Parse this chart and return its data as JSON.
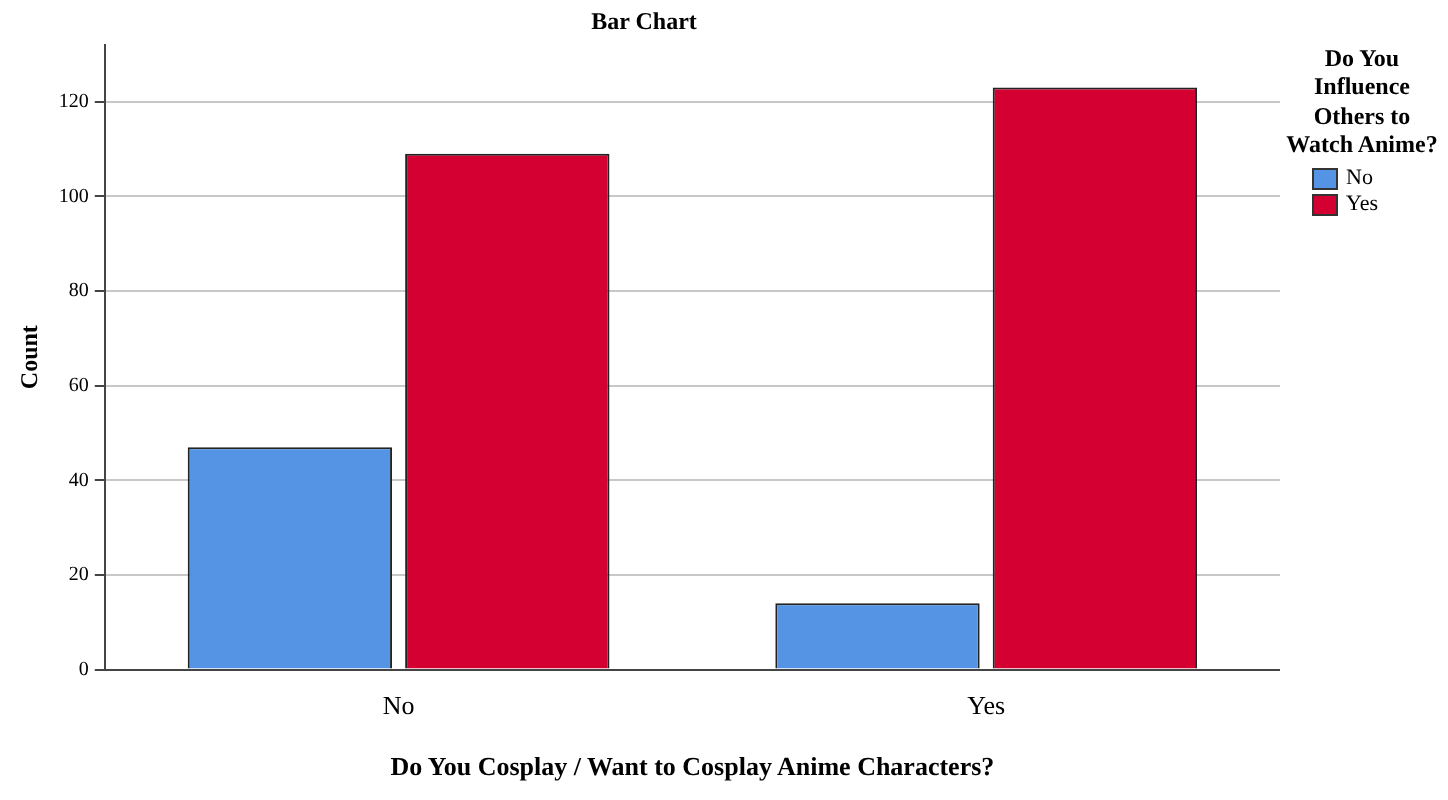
{
  "chart_data": {
    "type": "bar",
    "title": "Bar Chart",
    "xlabel": "Do You Cosplay / Want to Cosplay Anime Characters?",
    "ylabel": "Count",
    "legend_title": "Do You Influence Others to Watch Anime?",
    "categories": [
      "No",
      "Yes"
    ],
    "series": [
      {
        "name": "No",
        "color": "#5594e4",
        "values": [
          47,
          14
        ]
      },
      {
        "name": "Yes",
        "color": "#d50032",
        "values": [
          109,
          123
        ]
      }
    ],
    "ylim": [
      0,
      132
    ],
    "yticks": [
      0,
      20,
      40,
      60,
      80,
      100,
      120
    ],
    "grid": "y",
    "legend": "top right"
  }
}
